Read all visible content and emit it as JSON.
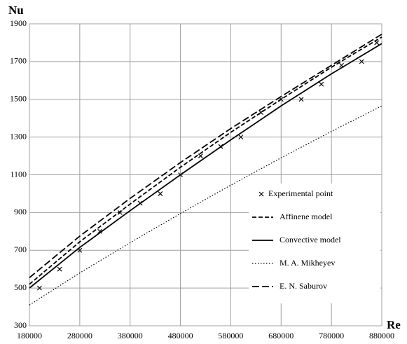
{
  "chart_data": {
    "type": "line",
    "y_label": "Nu",
    "x_label": "Re",
    "xlim": [
      180000,
      880000
    ],
    "xticks": [
      180000,
      280000,
      380000,
      480000,
      580000,
      680000,
      780000,
      880000
    ],
    "ylim": [
      300,
      1900
    ],
    "yticks": [
      300,
      500,
      700,
      900,
      1100,
      1300,
      1500,
      1700,
      1900
    ],
    "grid": true,
    "legend_position": "lower right",
    "series": [
      {
        "name": "Experimental point",
        "style": "marker",
        "color": "#000000",
        "x": [
          200000,
          240000,
          280000,
          320000,
          360000,
          400000,
          440000,
          480000,
          520000,
          560000,
          600000,
          640000,
          680000,
          720000,
          760000,
          800000,
          840000,
          870000
        ],
        "values": [
          500,
          600,
          700,
          800,
          900,
          950,
          1000,
          1100,
          1200,
          1250,
          1300,
          1430,
          1500,
          1500,
          1580,
          1680,
          1700,
          1800
        ]
      },
      {
        "name": "Affinene model",
        "style": "dash",
        "color": "#000000",
        "x": [
          180000,
          280000,
          380000,
          480000,
          580000,
          680000,
          780000,
          880000
        ],
        "values": [
          520,
          745,
          945,
          1140,
          1325,
          1500,
          1670,
          1830
        ]
      },
      {
        "name": "Convective model",
        "style": "solid",
        "color": "#000000",
        "x": [
          180000,
          280000,
          380000,
          480000,
          580000,
          680000,
          780000,
          880000
        ],
        "values": [
          500,
          715,
          910,
          1100,
          1285,
          1465,
          1635,
          1795
        ]
      },
      {
        "name": "M. A. Mikheyev",
        "style": "dot",
        "color": "#000000",
        "x": [
          180000,
          280000,
          380000,
          480000,
          580000,
          680000,
          780000,
          880000
        ],
        "values": [
          410,
          580,
          740,
          895,
          1045,
          1190,
          1330,
          1465
        ]
      },
      {
        "name": "E. N. Saburov",
        "style": "longdash",
        "color": "#000000",
        "x": [
          180000,
          280000,
          380000,
          480000,
          580000,
          680000,
          780000,
          880000
        ],
        "values": [
          555,
          775,
          975,
          1165,
          1345,
          1515,
          1680,
          1845
        ]
      }
    ]
  }
}
